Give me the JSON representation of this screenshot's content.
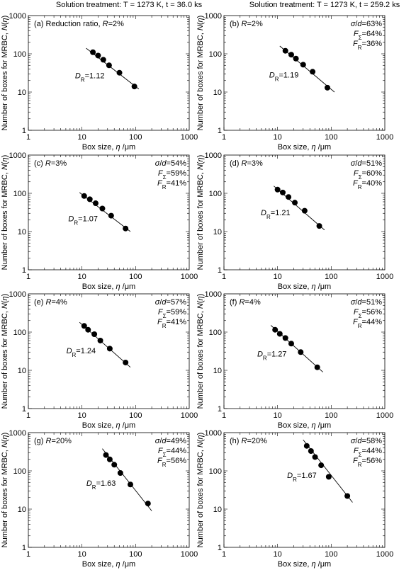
{
  "column_titles": [
    "Solution treatment: T = 1273 K, t = 36.0 ks",
    "Solution treatment: T = 1273 K, t = 259.2 ks"
  ],
  "axis": {
    "xlabel": "Box size, η /μm",
    "ylabel": "Number of boxes for MRBC, N(η)",
    "xlim": [
      1,
      1000
    ],
    "ylim": [
      1,
      1000
    ],
    "scale": "log-log",
    "tick_labels": [
      "1",
      "10",
      "100",
      "1000"
    ]
  },
  "chart_data": [
    {
      "type": "scatter",
      "panel": "(a)",
      "label": "(a) Reduction ratio, R=2%",
      "stats": [],
      "DR_label": "D_R=1.12",
      "series": [
        {
          "x": [
            16,
            20,
            25,
            32,
            50,
            95
          ],
          "y": [
            110,
            90,
            70,
            50,
            32,
            14
          ]
        }
      ],
      "fit": {
        "x": [
          12,
          115
        ],
        "y": [
          140,
          12
        ]
      }
    },
    {
      "type": "scatter",
      "panel": "(b)",
      "label": "(b) R=2%",
      "stats": [
        "σ/d=63%",
        "FΣ=64%",
        "FR=36%"
      ],
      "DR_label": "D_R=1.19",
      "series": [
        {
          "x": [
            14,
            18,
            22,
            30,
            45,
            85
          ],
          "y": [
            120,
            95,
            75,
            52,
            34,
            13
          ]
        }
      ],
      "fit": {
        "x": [
          11,
          115
        ],
        "y": [
          160,
          10
        ]
      }
    },
    {
      "type": "scatter",
      "panel": "(c)",
      "label": "(c) R=3%",
      "stats": [
        "σ/d=54%",
        "FΣ=59%",
        "FR=41%"
      ],
      "DR_label": "D_R=1.07",
      "series": [
        {
          "x": [
            11,
            14,
            18,
            24,
            35,
            65
          ],
          "y": [
            85,
            70,
            55,
            40,
            26,
            12
          ]
        }
      ],
      "fit": {
        "x": [
          9,
          80
        ],
        "y": [
          105,
          10
        ]
      }
    },
    {
      "type": "scatter",
      "panel": "(d)",
      "label": "(d) R=3%",
      "stats": [
        "σ/d=51%",
        "FΣ=60%",
        "FR=40%"
      ],
      "DR_label": "D_R=1.21",
      "series": [
        {
          "x": [
            10,
            12.5,
            16,
            21,
            32,
            60
          ],
          "y": [
            125,
            105,
            80,
            57,
            35,
            14
          ]
        }
      ],
      "fit": {
        "x": [
          8.5,
          75
        ],
        "y": [
          155,
          11
        ]
      }
    },
    {
      "type": "scatter",
      "panel": "(e)",
      "label": "(e) R=4%",
      "stats": [
        "σ/d=57%",
        "FΣ=59%",
        "FR=41%"
      ],
      "DR_label": "D_R=1.24",
      "series": [
        {
          "x": [
            11,
            13,
            17,
            22,
            33,
            65
          ],
          "y": [
            145,
            115,
            88,
            60,
            37,
            16
          ]
        }
      ],
      "fit": {
        "x": [
          9,
          80
        ],
        "y": [
          180,
          12
        ]
      }
    },
    {
      "type": "scatter",
      "panel": "(f)",
      "label": "(f) R=4%",
      "stats": [
        "σ/d=51%",
        "FΣ=56%",
        "FR=44%"
      ],
      "DR_label": "D_R=1.27",
      "series": [
        {
          "x": [
            9,
            11,
            14,
            18,
            27,
            55
          ],
          "y": [
            115,
            90,
            70,
            50,
            30,
            12
          ]
        }
      ],
      "fit": {
        "x": [
          7.5,
          70
        ],
        "y": [
          150,
          9
        ]
      }
    },
    {
      "type": "scatter",
      "panel": "(g)",
      "label": "(g) R=20%",
      "stats": [
        "σ/d=49%",
        "FΣ=44%",
        "FR=56%"
      ],
      "DR_label": "D_R=1.63",
      "series": [
        {
          "x": [
            28,
            33,
            40,
            52,
            80,
            170
          ],
          "y": [
            260,
            200,
            145,
            88,
            44,
            14
          ]
        }
      ],
      "fit": {
        "x": [
          24,
          200
        ],
        "y": [
          380,
          9
        ]
      }
    },
    {
      "type": "scatter",
      "panel": "(h)",
      "label": "(h) R=20%",
      "stats": [
        "σ/d=58%",
        "FΣ=44%",
        "FR=56%"
      ],
      "DR_label": "D_R=1.67",
      "series": [
        {
          "x": [
            35,
            42,
            50,
            65,
            90,
            200
          ],
          "y": [
            450,
            330,
            230,
            140,
            70,
            22
          ]
        }
      ],
      "fit": {
        "x": [
          30,
          250
        ],
        "y": [
          650,
          15
        ]
      }
    }
  ]
}
